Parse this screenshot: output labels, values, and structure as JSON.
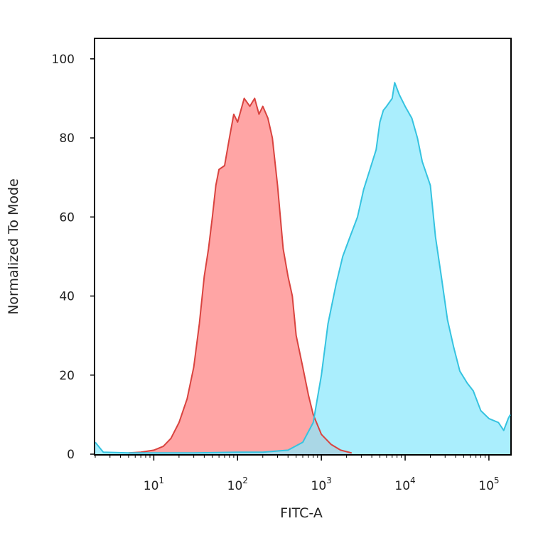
{
  "chart_data": {
    "type": "area",
    "xlabel": "FITC-A",
    "ylabel": "Normalized To Mode",
    "x_scale": "log",
    "xlim": [
      2,
      180000
    ],
    "ylim": [
      0,
      105
    ],
    "y_ticks": [
      {
        "value": 0,
        "label": "0"
      },
      {
        "value": 20,
        "label": "20"
      },
      {
        "value": 40,
        "label": "40"
      },
      {
        "value": 60,
        "label": "60"
      },
      {
        "value": 80,
        "label": "80"
      },
      {
        "value": 100,
        "label": "100"
      }
    ],
    "x_ticks": [
      {
        "value": 10,
        "base": "10",
        "exp": "1"
      },
      {
        "value": 100,
        "base": "10",
        "exp": "2"
      },
      {
        "value": 1000,
        "base": "10",
        "exp": "3"
      },
      {
        "value": 10000,
        "base": "10",
        "exp": "4"
      },
      {
        "value": 100000,
        "base": "10",
        "exp": "5"
      }
    ],
    "grid": false,
    "legend": "none",
    "series": [
      {
        "color": "#d9433f",
        "fill": "#ff8f8f",
        "points": [
          [
            5,
            0.3
          ],
          [
            7,
            0.5
          ],
          [
            10,
            1
          ],
          [
            13,
            2
          ],
          [
            16,
            4
          ],
          [
            20,
            8
          ],
          [
            25,
            14
          ],
          [
            30,
            22
          ],
          [
            35,
            33
          ],
          [
            40,
            45
          ],
          [
            45,
            52
          ],
          [
            50,
            60
          ],
          [
            55,
            68
          ],
          [
            60,
            72
          ],
          [
            70,
            73
          ],
          [
            80,
            80
          ],
          [
            90,
            86
          ],
          [
            100,
            84
          ],
          [
            120,
            90
          ],
          [
            140,
            88
          ],
          [
            160,
            90
          ],
          [
            180,
            86
          ],
          [
            200,
            88
          ],
          [
            230,
            85
          ],
          [
            260,
            80
          ],
          [
            300,
            68
          ],
          [
            350,
            52
          ],
          [
            400,
            45
          ],
          [
            450,
            40
          ],
          [
            500,
            30
          ],
          [
            600,
            22
          ],
          [
            700,
            15
          ],
          [
            800,
            10
          ],
          [
            1000,
            5
          ],
          [
            1300,
            2.5
          ],
          [
            1700,
            1
          ],
          [
            2300,
            0.3
          ]
        ]
      },
      {
        "color": "#35c3e0",
        "fill": "#8ee8fc",
        "points": [
          [
            2,
            3
          ],
          [
            2.5,
            0.5
          ],
          [
            5,
            0.3
          ],
          [
            30,
            0.3
          ],
          [
            100,
            0.5
          ],
          [
            200,
            0.5
          ],
          [
            400,
            1
          ],
          [
            600,
            3
          ],
          [
            800,
            8
          ],
          [
            1000,
            20
          ],
          [
            1200,
            33
          ],
          [
            1500,
            43
          ],
          [
            1800,
            50
          ],
          [
            2200,
            55
          ],
          [
            2700,
            60
          ],
          [
            3200,
            67
          ],
          [
            3800,
            72
          ],
          [
            4500,
            77
          ],
          [
            5000,
            84
          ],
          [
            5500,
            87
          ],
          [
            6000,
            88
          ],
          [
            7000,
            90
          ],
          [
            7500,
            94
          ],
          [
            8500,
            91
          ],
          [
            10000,
            88
          ],
          [
            12000,
            85
          ],
          [
            14000,
            80
          ],
          [
            16000,
            74
          ],
          [
            20000,
            68
          ],
          [
            23000,
            55
          ],
          [
            27000,
            45
          ],
          [
            32000,
            34
          ],
          [
            38000,
            27
          ],
          [
            45000,
            21
          ],
          [
            55000,
            18
          ],
          [
            65000,
            16
          ],
          [
            80000,
            11
          ],
          [
            100000,
            9
          ],
          [
            130000,
            8
          ],
          [
            150000,
            6
          ],
          [
            170000,
            9
          ],
          [
            180000,
            10
          ]
        ]
      }
    ]
  }
}
